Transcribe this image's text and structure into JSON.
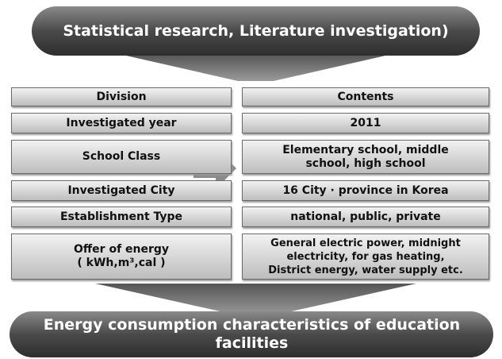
{
  "header": {
    "title": "Statistical research, Literature investigation)"
  },
  "rows": [
    {
      "left": [
        "Division"
      ],
      "right": [
        "Contents"
      ]
    },
    {
      "left": [
        "Investigated year"
      ],
      "right": [
        "2011"
      ]
    },
    {
      "left": [
        "School Class"
      ],
      "right": [
        "Elementary school, middle",
        "school, high school"
      ]
    },
    {
      "left": [
        "Investigated City"
      ],
      "right": [
        "16 City · province in Korea"
      ]
    },
    {
      "left": [
        "Establishment Type"
      ],
      "right": [
        "national, public, private"
      ]
    },
    {
      "left": [
        "Offer of energy",
        "( kWh,m³,cal )"
      ],
      "right": [
        "General electric power, midnight",
        "electricity, for gas heating,",
        "District energy, water supply etc."
      ]
    }
  ],
  "footer": {
    "title": "Energy consumption characteristics of education facilities"
  }
}
